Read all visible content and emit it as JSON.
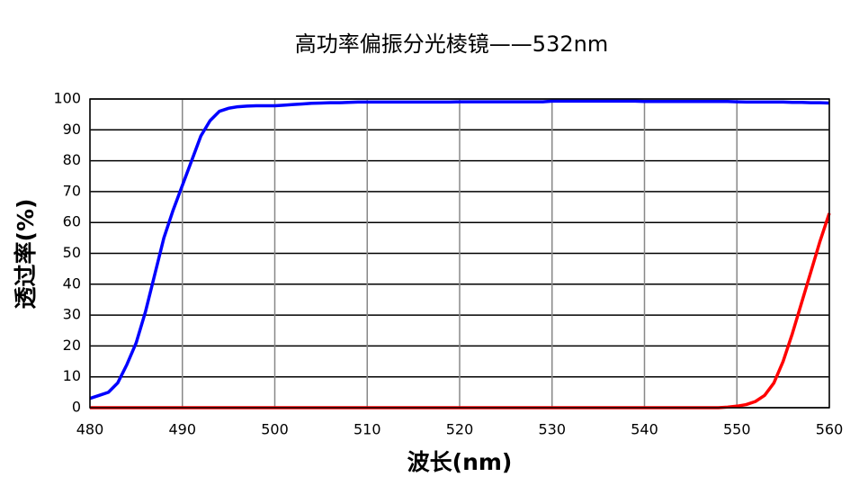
{
  "chart_data": {
    "type": "line",
    "title": "高功率偏振分光棱镜——532nm",
    "xlabel": "波长(nm)",
    "ylabel": "透过率(%)",
    "x": [
      480,
      481,
      482,
      483,
      484,
      485,
      486,
      487,
      488,
      489,
      490,
      491,
      492,
      493,
      494,
      495,
      496,
      497,
      498,
      499,
      500,
      501,
      502,
      503,
      504,
      505,
      506,
      507,
      508,
      509,
      510,
      511,
      512,
      513,
      514,
      515,
      516,
      517,
      518,
      519,
      520,
      521,
      522,
      523,
      524,
      525,
      526,
      527,
      528,
      529,
      530,
      531,
      532,
      533,
      534,
      535,
      536,
      537,
      538,
      539,
      540,
      541,
      542,
      543,
      544,
      545,
      546,
      547,
      548,
      549,
      550,
      551,
      552,
      553,
      554,
      555,
      556,
      557,
      558,
      559,
      560
    ],
    "series": [
      {
        "color": "#0000ff",
        "values": [
          3,
          4,
          5,
          8,
          14,
          21,
          31,
          43,
          55,
          64,
          72,
          80,
          88,
          93,
          96,
          97,
          97.5,
          97.7,
          97.8,
          97.8,
          97.8,
          98,
          98.2,
          98.4,
          98.6,
          98.7,
          98.8,
          98.8,
          98.9,
          99,
          99,
          99,
          99,
          99,
          99,
          99,
          99,
          99,
          99,
          99,
          99.1,
          99.1,
          99.1,
          99.1,
          99.1,
          99.1,
          99.1,
          99.1,
          99.1,
          99.1,
          99.3,
          99.3,
          99.3,
          99.3,
          99.3,
          99.3,
          99.3,
          99.3,
          99.3,
          99.3,
          99.2,
          99.2,
          99.2,
          99.2,
          99.2,
          99.2,
          99.2,
          99.2,
          99.2,
          99.2,
          99.1,
          99,
          99,
          99,
          99,
          99,
          98.9,
          98.9,
          98.8,
          98.8,
          98.7
        ]
      },
      {
        "color": "#ff0000",
        "values": [
          0,
          0,
          0,
          0,
          0,
          0,
          0,
          0,
          0,
          0,
          0,
          0,
          0,
          0,
          0,
          0,
          0,
          0,
          0,
          0,
          0,
          0,
          0,
          0,
          0,
          0,
          0,
          0,
          0,
          0,
          0,
          0,
          0,
          0,
          0,
          0,
          0,
          0,
          0,
          0,
          0,
          0,
          0,
          0,
          0,
          0,
          0,
          0,
          0,
          0,
          0,
          0,
          0,
          0,
          0,
          0,
          0,
          0,
          0,
          0,
          0,
          0,
          0,
          0,
          0,
          0,
          0,
          0,
          0,
          0.2,
          0.5,
          1,
          2,
          4,
          8,
          15,
          24,
          34,
          44,
          54,
          63
        ]
      }
    ],
    "xlim": [
      480,
      560
    ],
    "xticks": [
      480,
      490,
      500,
      510,
      520,
      530,
      540,
      550,
      560
    ],
    "ylim": [
      0,
      100
    ],
    "yticks": [
      0,
      10,
      20,
      30,
      40,
      50,
      60,
      70,
      80,
      90,
      100
    ],
    "grid": true
  }
}
